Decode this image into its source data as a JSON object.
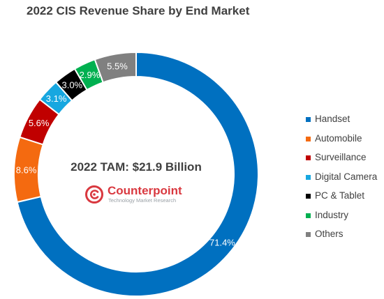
{
  "chart_data": {
    "type": "pie",
    "title": "2022 CIS Revenue Share by End Market",
    "center_text": "2022 TAM: $21.9 Billion",
    "categories": [
      "Handset",
      "Automobile",
      "Surveillance",
      "Digital Camera",
      "PC & Tablet",
      "Industry",
      "Others"
    ],
    "values": [
      71.4,
      8.6,
      5.6,
      3.1,
      3.0,
      2.9,
      5.5
    ],
    "data_labels": [
      "71.4%",
      "8.6%",
      "5.6%",
      "3.1%",
      "3.0%",
      "2.9%",
      "5.5%"
    ],
    "colors": [
      "#0070c0",
      "#f46a10",
      "#c00000",
      "#17a7e0",
      "#000000",
      "#00b050",
      "#808080"
    ],
    "donut": true,
    "legend_position": "right"
  },
  "logo": {
    "name": "Counterpoint",
    "tagline": "Technology Market Research",
    "icon": "counterpoint-logo-icon"
  }
}
